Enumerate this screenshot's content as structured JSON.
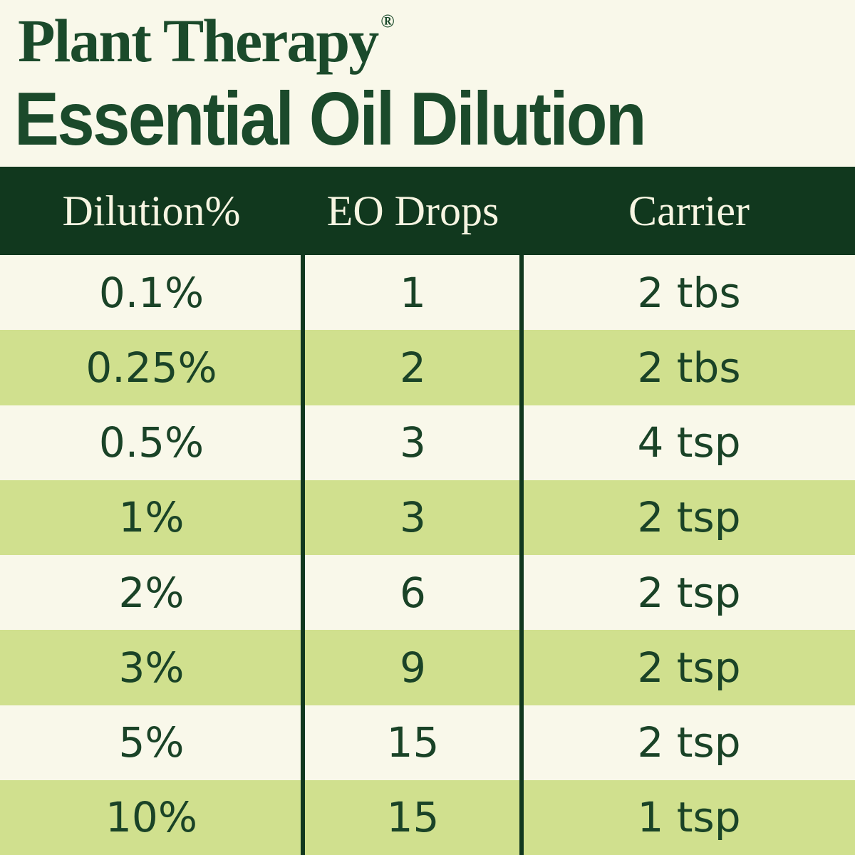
{
  "brand": {
    "name": "Plant Therapy",
    "registered_mark": "®"
  },
  "title": "Essential Oil Dilution",
  "table": {
    "headers": {
      "dilution": "Dilution%",
      "drops": "EO Drops",
      "carrier": "Carrier"
    },
    "rows": [
      {
        "dilution": "0.1%",
        "drops": "1",
        "carrier": "2 tbs"
      },
      {
        "dilution": "0.25%",
        "drops": "2",
        "carrier": "2 tbs"
      },
      {
        "dilution": "0.5%",
        "drops": "3",
        "carrier": "4 tsp"
      },
      {
        "dilution": "1%",
        "drops": "3",
        "carrier": "2 tsp"
      },
      {
        "dilution": "2%",
        "drops": "6",
        "carrier": "2 tsp"
      },
      {
        "dilution": "3%",
        "drops": "9",
        "carrier": "2 tsp"
      },
      {
        "dilution": "5%",
        "drops": "15",
        "carrier": "2 tsp"
      },
      {
        "dilution": "10%",
        "drops": "15",
        "carrier": "1 tsp"
      }
    ]
  },
  "colors": {
    "bg_cream": "#f9f8ea",
    "dark_green": "#11381e",
    "row_green": "#d0e08e",
    "title_green": "#1b4a2b",
    "data_green": "#1a4327",
    "header_text": "#f7f5e2"
  },
  "chart_data": {
    "type": "table",
    "title": "Essential Oil Dilution",
    "brand": "Plant Therapy",
    "columns": [
      "Dilution%",
      "EO Drops",
      "Carrier"
    ],
    "rows": [
      [
        "0.1%",
        "1",
        "2 tbs"
      ],
      [
        "0.25%",
        "2",
        "2 tbs"
      ],
      [
        "0.5%",
        "3",
        "4 tsp"
      ],
      [
        "1%",
        "3",
        "2 tsp"
      ],
      [
        "2%",
        "6",
        "2 tsp"
      ],
      [
        "3%",
        "9",
        "2 tsp"
      ],
      [
        "5%",
        "15",
        "2 tsp"
      ],
      [
        "10%",
        "15",
        "1 tsp"
      ]
    ],
    "layout_hints": {
      "header_style": "dark green bar, cream serif text",
      "row_striping": "cream / light green alternating",
      "column_dividers": "dark green vertical rules between columns"
    }
  }
}
